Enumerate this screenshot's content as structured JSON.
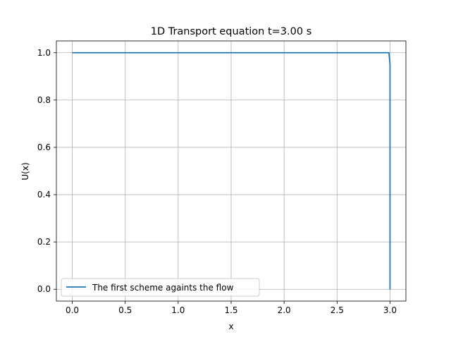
{
  "chart_data": {
    "type": "line",
    "title": "1D Transport equation t=3.00 s",
    "xlabel": "x",
    "ylabel": "U(x)",
    "xlim": [
      -0.15,
      3.15
    ],
    "ylim": [
      -0.05,
      1.05
    ],
    "xticks": [
      0.0,
      0.5,
      1.0,
      1.5,
      2.0,
      2.5,
      3.0
    ],
    "xtick_labels": [
      "0.0",
      "0.5",
      "1.0",
      "1.5",
      "2.0",
      "2.5",
      "3.0"
    ],
    "yticks": [
      0.0,
      0.2,
      0.4,
      0.6,
      0.8,
      1.0
    ],
    "ytick_labels": [
      "0.0",
      "0.2",
      "0.4",
      "0.6",
      "0.8",
      "1.0"
    ],
    "grid": true,
    "legend_position": "lower-left",
    "series": [
      {
        "name": "The first scheme againts the flow",
        "color": "#1f77b4",
        "x": [
          0.0,
          2.99,
          3.0,
          3.0
        ],
        "y": [
          1.0,
          1.0,
          0.95,
          0.0
        ]
      }
    ]
  }
}
